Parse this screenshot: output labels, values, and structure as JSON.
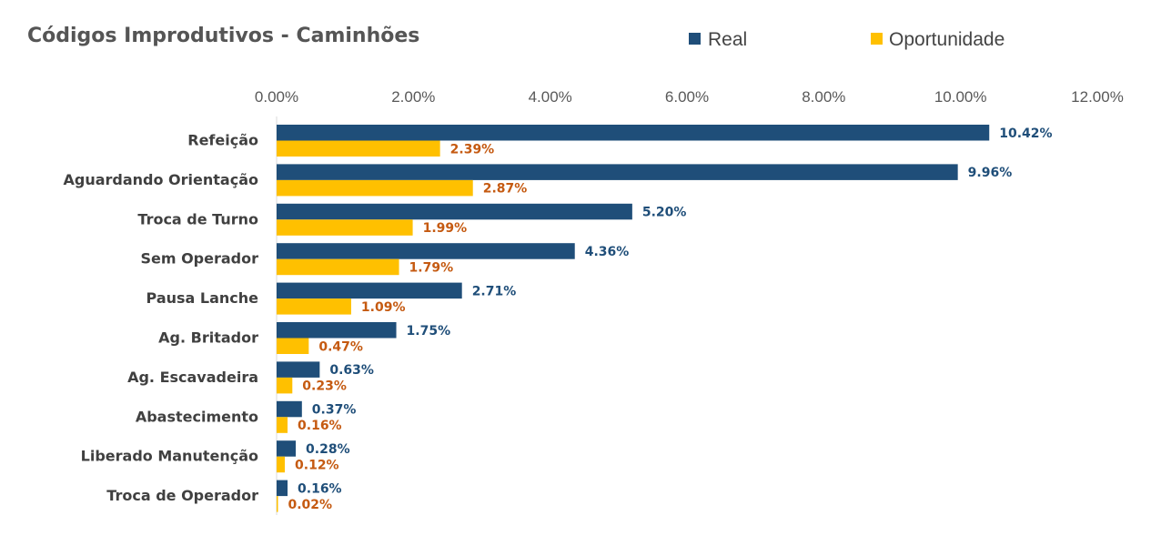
{
  "chart_data": {
    "type": "bar",
    "orientation": "horizontal",
    "title": "Códigos Improdutivos - Caminhões",
    "xlabel": "",
    "ylabel": "",
    "xlim": [
      0,
      12
    ],
    "x_ticks": [
      "0.00%",
      "2.00%",
      "4.00%",
      "6.00%",
      "8.00%",
      "10.00%",
      "12.00%"
    ],
    "x_tick_values": [
      0,
      2,
      4,
      6,
      8,
      10,
      12
    ],
    "grid": false,
    "legend_position": "top",
    "categories": [
      "Refeição",
      "Aguardando Orientação",
      "Troca de Turno",
      "Sem Operador",
      "Pausa Lanche",
      "Ag. Britador",
      "Ag. Escavadeira",
      "Abastecimento",
      "Liberado Manutenção",
      "Troca de Operador"
    ],
    "series": [
      {
        "name": "Real",
        "color": "#1F4E79",
        "label_color": "#1F4E79",
        "values": [
          10.42,
          9.96,
          5.2,
          4.36,
          2.71,
          1.75,
          0.63,
          0.37,
          0.28,
          0.16
        ],
        "labels": [
          "10.42%",
          "9.96%",
          "5.20%",
          "4.36%",
          "2.71%",
          "1.75%",
          "0.63%",
          "0.37%",
          "0.28%",
          "0.16%"
        ]
      },
      {
        "name": "Oportunidade",
        "color": "#FFC000",
        "label_color": "#C55A11",
        "values": [
          2.39,
          2.87,
          1.99,
          1.79,
          1.09,
          0.47,
          0.23,
          0.16,
          0.12,
          0.02
        ],
        "labels": [
          "2.39%",
          "2.87%",
          "1.99%",
          "1.79%",
          "1.09%",
          "0.47%",
          "0.23%",
          "0.16%",
          "0.12%",
          "0.02%"
        ]
      }
    ]
  }
}
